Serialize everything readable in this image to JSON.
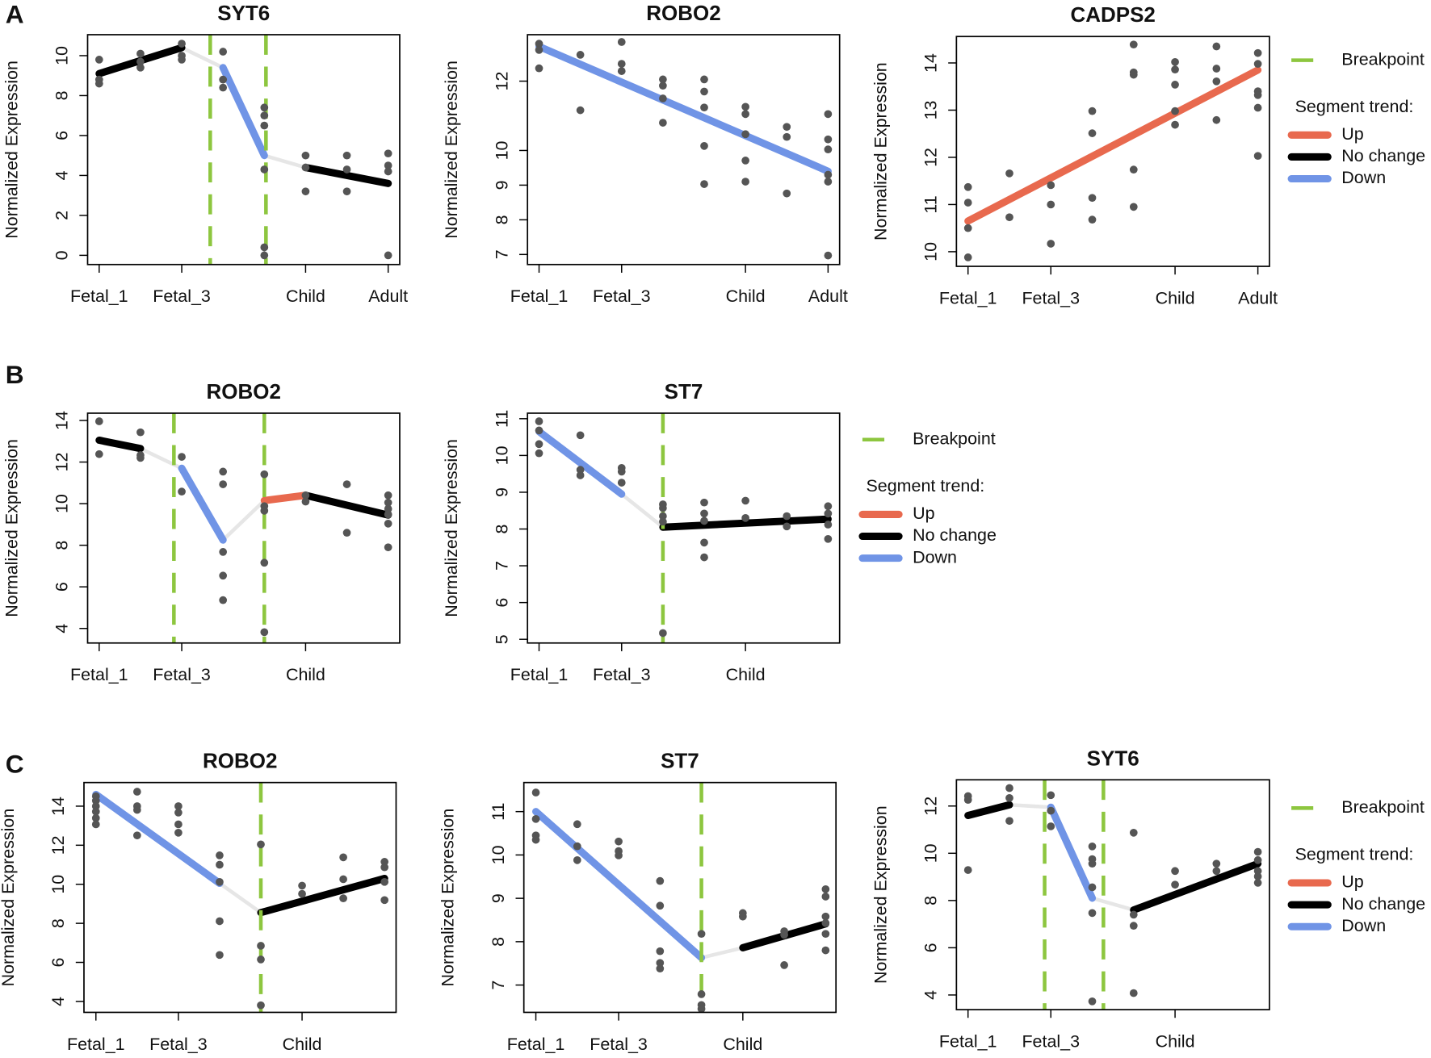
{
  "panel_labels": [
    "A",
    "B",
    "C"
  ],
  "chart_data": [
    {
      "type": "segmented",
      "title": "SYT6",
      "ylabel": "Normalized Expression",
      "xlim": [
        0.72,
        8.28
      ],
      "xticks": [
        {
          "value": 1,
          "label": "Fetal_1"
        },
        {
          "value": 3,
          "label": "Fetal_3"
        },
        {
          "value": 6,
          "label": "Child"
        },
        {
          "value": 8,
          "label": "Adult"
        }
      ],
      "ylim": [
        -0.46,
        11.05
      ],
      "yticks": [
        0,
        2,
        4,
        6,
        8,
        10
      ],
      "points": {
        "color": "#555555",
        "x": [
          1,
          1,
          1,
          2,
          2,
          2,
          3,
          3,
          3,
          4,
          4,
          4,
          5,
          5,
          5,
          5,
          5,
          5,
          6,
          6,
          6,
          7,
          7,
          7,
          8,
          8,
          8,
          8
        ],
        "y": [
          9.8,
          8.8,
          8.6,
          10.1,
          9.7,
          9.4,
          10.6,
          10.0,
          9.8,
          10.2,
          8.8,
          8.4,
          7.4,
          7.0,
          6.5,
          4.3,
          0.4,
          0.0,
          5.0,
          4.4,
          3.2,
          5.0,
          4.3,
          3.2,
          5.1,
          4.5,
          4.2,
          0.0
        ]
      },
      "segments": [
        {
          "color": "#000000",
          "x": [
            1,
            3
          ],
          "y": [
            9.1,
            10.4
          ]
        },
        {
          "color": "#7094e6",
          "x": [
            4,
            5
          ],
          "y": [
            9.4,
            5.0
          ]
        },
        {
          "color": "#000000",
          "x": [
            6,
            8
          ],
          "y": [
            4.4,
            3.6
          ]
        }
      ],
      "breakpoints": {
        "color": "#8dc63f",
        "x": [
          3.69,
          5.04
        ]
      }
    },
    {
      "type": "segmented",
      "title": "ROBO2",
      "ylabel": "Normalized Expression",
      "xlim": [
        0.72,
        8.28
      ],
      "xticks": [
        {
          "value": 1,
          "label": "Fetal_1"
        },
        {
          "value": 3,
          "label": "Fetal_3"
        },
        {
          "value": 6,
          "label": "Child"
        },
        {
          "value": 8,
          "label": "Adult"
        }
      ],
      "ylim": [
        6.71,
        13.34
      ],
      "yticks": [
        7,
        8,
        9,
        10,
        12
      ],
      "points": {
        "color": "#555555",
        "x": [
          1,
          1,
          1,
          2,
          2,
          3,
          3,
          3,
          4,
          4,
          4,
          4,
          5,
          5,
          5,
          5,
          5,
          6,
          6,
          6,
          6,
          6,
          7,
          7,
          7,
          8,
          8,
          8,
          8,
          8,
          8
        ],
        "y": [
          13.08,
          12.9,
          12.37,
          12.76,
          11.16,
          13.13,
          12.5,
          12.29,
          12.05,
          11.87,
          11.5,
          10.8,
          12.05,
          11.7,
          11.24,
          10.13,
          9.03,
          11.26,
          11.05,
          10.47,
          9.71,
          9.1,
          10.68,
          10.39,
          8.76,
          11.05,
          10.32,
          10.03,
          9.3,
          9.1,
          6.97
        ]
      },
      "segments": [
        {
          "color": "#7094e6",
          "x": [
            1,
            8
          ],
          "y": [
            13.0,
            9.4
          ]
        }
      ],
      "breakpoints": {
        "color": "#8dc63f",
        "x": []
      }
    },
    {
      "type": "segmented",
      "title": "CADPS2",
      "ylabel": "Normalized Expression",
      "xlim": [
        0.72,
        8.28
      ],
      "xticks": [
        {
          "value": 1,
          "label": "Fetal_1"
        },
        {
          "value": 3,
          "label": "Fetal_3"
        },
        {
          "value": 6,
          "label": "Child"
        },
        {
          "value": 8,
          "label": "Adult"
        }
      ],
      "ylim": [
        9.69,
        14.56
      ],
      "yticks": [
        10,
        11,
        12,
        13,
        14
      ],
      "points": {
        "color": "#555555",
        "x": [
          1,
          1,
          1,
          1,
          2,
          2,
          3,
          3,
          3,
          4,
          4,
          4,
          4,
          5,
          5,
          5,
          5,
          5,
          6,
          6,
          6,
          6,
          6,
          7,
          7,
          7,
          7,
          8,
          8,
          8,
          8,
          8,
          8
        ],
        "y": [
          11.37,
          11.04,
          10.5,
          9.88,
          11.66,
          10.73,
          11.41,
          11.0,
          10.17,
          12.98,
          12.51,
          11.14,
          10.68,
          14.39,
          13.8,
          13.75,
          11.74,
          10.95,
          14.02,
          13.86,
          13.54,
          12.98,
          12.69,
          14.35,
          13.88,
          13.61,
          12.79,
          14.21,
          13.98,
          13.4,
          13.32,
          13.05,
          12.03
        ]
      },
      "segments": [
        {
          "color": "#e8694e",
          "x": [
            1,
            8
          ],
          "y": [
            10.65,
            13.85
          ]
        }
      ],
      "breakpoints": {
        "color": "#8dc63f",
        "x": []
      },
      "legend": {
        "breakpoint": "Breakpoint",
        "title": "Segment trend:",
        "items": [
          {
            "name": "Up",
            "color": "#e8694e"
          },
          {
            "name": "No change",
            "color": "#000000"
          },
          {
            "name": "Down",
            "color": "#7094e6"
          }
        ]
      }
    },
    {
      "type": "segmented",
      "title": "ROBO2",
      "ylabel": "Normalized Expression",
      "xlim": [
        0.72,
        8.28
      ],
      "xticks": [
        {
          "value": 1,
          "label": "Fetal_1"
        },
        {
          "value": 3,
          "label": "Fetal_3"
        },
        {
          "value": 6,
          "label": "Child"
        }
      ],
      "ylim": [
        3.3,
        14.35
      ],
      "yticks": [
        4,
        6,
        8,
        10,
        12,
        14
      ],
      "points": {
        "color": "#555555",
        "x": [
          1,
          1,
          2,
          2,
          2,
          3,
          3,
          4,
          4,
          4,
          4,
          4,
          5,
          5,
          5,
          5,
          5,
          6,
          6,
          7,
          7,
          8,
          8,
          8,
          8,
          8,
          8
        ],
        "y": [
          13.96,
          12.38,
          13.43,
          12.33,
          12.2,
          12.25,
          10.58,
          11.54,
          10.93,
          7.68,
          6.54,
          5.36,
          11.41,
          9.88,
          9.66,
          7.16,
          3.82,
          10.4,
          10.1,
          10.93,
          8.6,
          10.4,
          10.05,
          9.75,
          9.48,
          9.04,
          7.9
        ]
      },
      "segments": [
        {
          "color": "#000000",
          "x": [
            1,
            2
          ],
          "y": [
            13.05,
            12.65
          ]
        },
        {
          "color": "#7094e6",
          "x": [
            3,
            4
          ],
          "y": [
            11.7,
            8.25
          ]
        },
        {
          "color": "#e8694e",
          "x": [
            5,
            6
          ],
          "y": [
            10.15,
            10.4
          ]
        },
        {
          "color": "#000000",
          "x": [
            6,
            8
          ],
          "y": [
            10.4,
            9.45
          ]
        }
      ],
      "breakpoints": {
        "color": "#8dc63f",
        "x": [
          2.81,
          5.0
        ]
      }
    },
    {
      "type": "segmented",
      "title": "ST7",
      "ylabel": "Normalized Expression",
      "xlim": [
        0.72,
        8.28
      ],
      "xticks": [
        {
          "value": 1,
          "label": "Fetal_1"
        },
        {
          "value": 3,
          "label": "Fetal_3"
        },
        {
          "value": 6,
          "label": "Child"
        }
      ],
      "ylim": [
        4.9,
        11.15
      ],
      "yticks": [
        5,
        6,
        7,
        8,
        9,
        10,
        11
      ],
      "points": {
        "color": "#555555",
        "x": [
          1,
          1,
          1,
          1,
          2,
          2,
          2,
          3,
          3,
          3,
          4,
          4,
          4,
          4,
          4,
          5,
          5,
          5,
          5,
          5,
          6,
          6,
          7,
          7,
          8,
          8,
          8,
          8
        ],
        "y": [
          10.93,
          10.68,
          10.31,
          10.06,
          10.55,
          9.61,
          9.46,
          9.66,
          9.56,
          9.26,
          8.67,
          8.57,
          8.35,
          8.2,
          5.17,
          8.72,
          8.42,
          8.22,
          7.63,
          7.23,
          8.77,
          8.3,
          8.35,
          8.07,
          8.62,
          8.42,
          8.12,
          7.73
        ]
      },
      "segments": [
        {
          "color": "#7094e6",
          "x": [
            1,
            3
          ],
          "y": [
            10.65,
            8.95
          ]
        },
        {
          "color": "#000000",
          "x": [
            4,
            8
          ],
          "y": [
            8.05,
            8.27
          ]
        }
      ],
      "breakpoints": {
        "color": "#8dc63f",
        "x": [
          4.0
        ]
      },
      "legend": {
        "breakpoint": "Breakpoint",
        "title": "Segment trend:",
        "items": [
          {
            "name": "Up",
            "color": "#e8694e"
          },
          {
            "name": "No change",
            "color": "#000000"
          },
          {
            "name": "Down",
            "color": "#7094e6"
          }
        ]
      }
    },
    {
      "type": "segmented",
      "title": "ROBO2",
      "ylabel": "Normalized Expression",
      "xlim": [
        0.71,
        8.28
      ],
      "xticks": [
        {
          "value": 1,
          "label": "Fetal_1"
        },
        {
          "value": 3,
          "label": "Fetal_3"
        },
        {
          "value": 6,
          "label": "Child"
        }
      ],
      "ylim": [
        3.44,
        15.21
      ],
      "yticks": [
        4,
        6,
        8,
        10,
        12,
        14
      ],
      "points": {
        "color": "#555555",
        "x": [
          1,
          1,
          1,
          1,
          1,
          1,
          2,
          2,
          2,
          2,
          3,
          3,
          3,
          3,
          4,
          4,
          4,
          4,
          4,
          5,
          5,
          5,
          5,
          6,
          6,
          7,
          7,
          7,
          8,
          8,
          8,
          8
        ],
        "y": [
          14.51,
          14.28,
          14.0,
          13.72,
          13.39,
          13.07,
          14.74,
          14.0,
          13.81,
          12.5,
          14.0,
          13.67,
          13.07,
          12.64,
          11.48,
          11.0,
          10.12,
          8.11,
          6.38,
          12.04,
          6.85,
          6.15,
          3.8,
          9.93,
          9.51,
          11.38,
          10.26,
          9.28,
          11.15,
          10.87,
          10.12,
          9.19
        ]
      },
      "segments": [
        {
          "color": "#7094e6",
          "x": [
            1,
            4
          ],
          "y": [
            14.6,
            10.05
          ]
        },
        {
          "color": "#000000",
          "x": [
            5,
            8
          ],
          "y": [
            8.55,
            10.3
          ]
        }
      ],
      "breakpoints": {
        "color": "#8dc63f",
        "x": [
          5.0
        ]
      }
    },
    {
      "type": "segmented",
      "title": "ST7",
      "ylabel": "Normalized Expression",
      "xlim": [
        0.71,
        8.25
      ],
      "xticks": [
        {
          "value": 1,
          "label": "Fetal_1"
        },
        {
          "value": 3,
          "label": "Fetal_3"
        },
        {
          "value": 6,
          "label": "Child"
        }
      ],
      "ylim": [
        6.37,
        11.67
      ],
      "yticks": [
        7,
        8,
        9,
        10,
        11
      ],
      "points": {
        "color": "#555555",
        "x": [
          1,
          1,
          1,
          1,
          2,
          2,
          2,
          3,
          3,
          3,
          4,
          4,
          4,
          4,
          4,
          5,
          5,
          5,
          5,
          6,
          6,
          7,
          7,
          7,
          8,
          8,
          8,
          8,
          8,
          8
        ],
        "y": [
          11.44,
          10.83,
          10.45,
          10.35,
          10.71,
          10.2,
          9.88,
          10.31,
          10.09,
          9.99,
          9.4,
          8.83,
          7.78,
          7.51,
          7.38,
          8.18,
          6.79,
          6.54,
          6.45,
          8.66,
          8.58,
          8.24,
          8.16,
          7.46,
          9.21,
          9.04,
          8.58,
          8.43,
          8.18,
          7.8
        ]
      },
      "segments": [
        {
          "color": "#7094e6",
          "x": [
            1,
            5
          ],
          "y": [
            11.0,
            7.63
          ]
        },
        {
          "color": "#000000",
          "x": [
            6,
            8
          ],
          "y": [
            7.86,
            8.41
          ]
        }
      ],
      "breakpoints": {
        "color": "#8dc63f",
        "x": [
          5.0
        ]
      }
    },
    {
      "type": "segmented",
      "title": "SYT6",
      "ylabel": "Normalized Expression",
      "xlim": [
        0.72,
        8.28
      ],
      "xticks": [
        {
          "value": 1,
          "label": "Fetal_1"
        },
        {
          "value": 3,
          "label": "Fetal_3"
        },
        {
          "value": 6,
          "label": "Child"
        }
      ],
      "ylim": [
        3.38,
        13.11
      ],
      "yticks": [
        4,
        6,
        8,
        10,
        12
      ],
      "points": {
        "color": "#555555",
        "x": [
          1,
          1,
          1,
          2,
          2,
          2,
          3,
          3,
          3,
          4,
          4,
          4,
          4,
          4,
          4,
          5,
          5,
          5,
          5,
          6,
          6,
          7,
          7,
          8,
          8,
          8,
          8,
          8
        ],
        "y": [
          12.42,
          12.26,
          9.29,
          12.76,
          12.34,
          11.37,
          12.46,
          11.8,
          11.14,
          10.29,
          9.75,
          9.56,
          8.56,
          7.47,
          3.73,
          10.87,
          7.4,
          6.93,
          4.08,
          9.25,
          8.67,
          9.56,
          9.25,
          10.06,
          9.71,
          9.25,
          9.02,
          8.75
        ]
      },
      "segments": [
        {
          "color": "#000000",
          "x": [
            1,
            2
          ],
          "y": [
            11.6,
            12.05
          ]
        },
        {
          "color": "#7094e6",
          "x": [
            3,
            4
          ],
          "y": [
            11.95,
            8.1
          ]
        },
        {
          "color": "#000000",
          "x": [
            5,
            8
          ],
          "y": [
            7.6,
            9.56
          ]
        }
      ],
      "breakpoints": {
        "color": "#8dc63f",
        "x": [
          2.85,
          4.27
        ]
      },
      "legend": {
        "breakpoint": "Breakpoint",
        "title": "Segment trend:",
        "items": [
          {
            "name": "Up",
            "color": "#e8694e"
          },
          {
            "name": "No change",
            "color": "#000000"
          },
          {
            "name": "Down",
            "color": "#7094e6"
          }
        ]
      }
    }
  ]
}
